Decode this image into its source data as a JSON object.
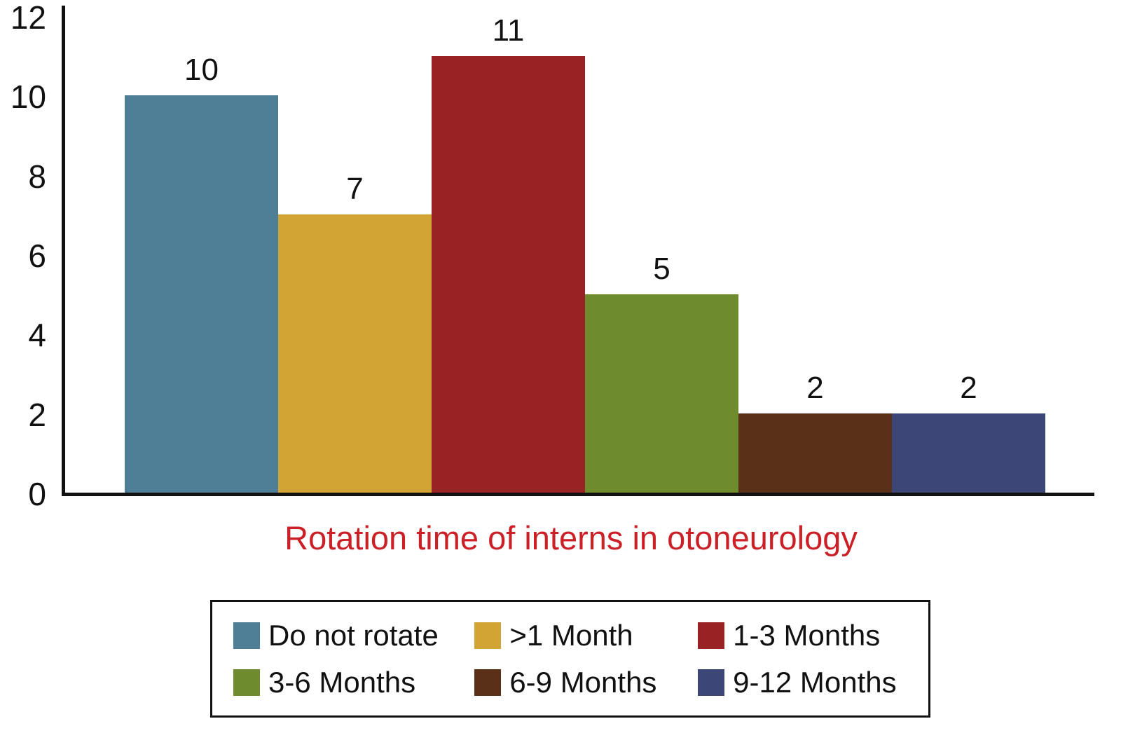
{
  "chart_data": {
    "type": "bar",
    "title": "Rotation time of interns in otoneurology",
    "title_color": "#cc2027",
    "categories": [
      "Do not rotate",
      ">1 Month",
      "1-3 Months",
      "3-6 Months",
      "6-9 Months",
      "9-12 Months"
    ],
    "values": [
      10,
      7,
      11,
      5,
      2,
      2
    ],
    "colors": [
      "#4d7e96",
      "#d2a434",
      "#992225",
      "#6e8c2e",
      "#5a3118",
      "#3c4677"
    ],
    "ylim": [
      0,
      12
    ],
    "yticks": [
      0,
      2,
      4,
      6,
      8,
      10,
      12
    ],
    "grid": false,
    "legend_position": "bottom",
    "legend": [
      {
        "label": "Do not rotate",
        "color": "#4d7e96"
      },
      {
        "label": ">1 Month",
        "color": "#d2a434"
      },
      {
        "label": "1-3 Months",
        "color": "#992225"
      },
      {
        "label": "3-6 Months",
        "color": "#6e8c2e"
      },
      {
        "label": "6-9 Months",
        "color": "#5a3118"
      },
      {
        "label": "9-12 Months",
        "color": "#3c4677"
      }
    ]
  }
}
